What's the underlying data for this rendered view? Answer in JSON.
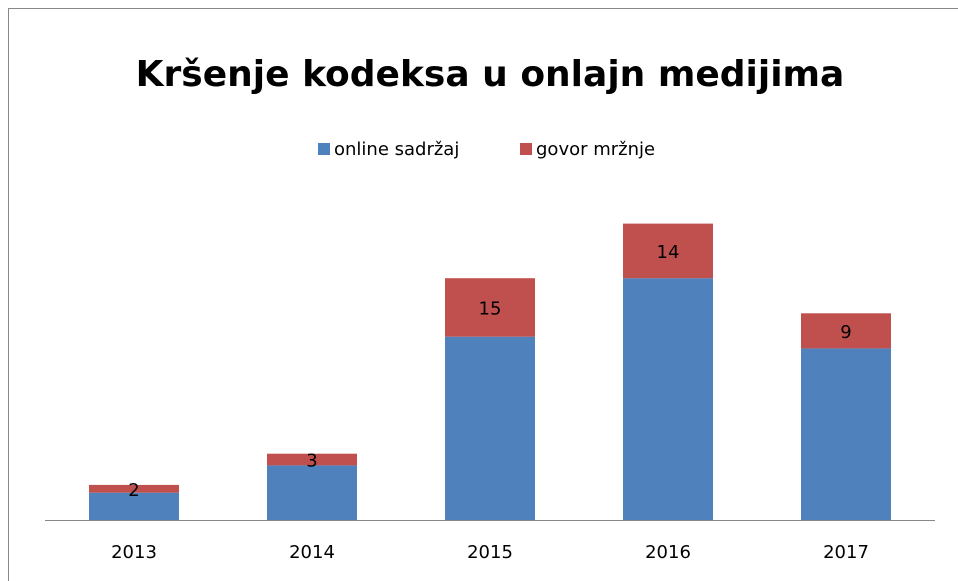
{
  "chart_data": {
    "type": "stacked_bar",
    "title": "Kršenje kodeksa u onlajn medijima",
    "categories": [
      "2013",
      "2014",
      "2015",
      "2016",
      "2017"
    ],
    "series": [
      {
        "name": "online sadržaj",
        "color": "#4f81bd",
        "values": [
          7,
          14,
          47,
          62,
          44
        ],
        "show_labels": false
      },
      {
        "name": "govor mržnje",
        "color": "#c0504d",
        "values": [
          2,
          3,
          15,
          14,
          9
        ],
        "show_labels": true
      }
    ],
    "ylim": [
      0,
      80
    ],
    "legend": "top"
  }
}
